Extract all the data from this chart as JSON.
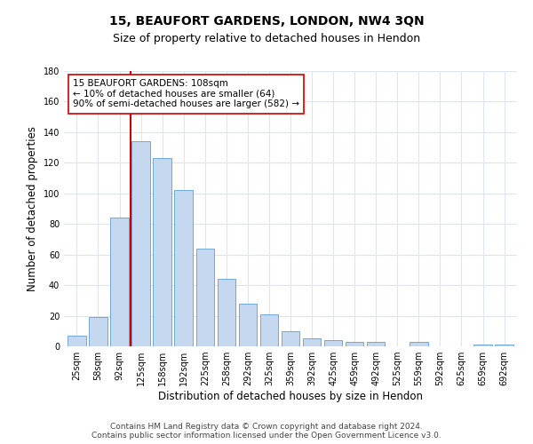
{
  "title": "15, BEAUFORT GARDENS, LONDON, NW4 3QN",
  "subtitle": "Size of property relative to detached houses in Hendon",
  "xlabel": "Distribution of detached houses by size in Hendon",
  "ylabel": "Number of detached properties",
  "categories": [
    "25sqm",
    "58sqm",
    "92sqm",
    "125sqm",
    "158sqm",
    "192sqm",
    "225sqm",
    "258sqm",
    "292sqm",
    "325sqm",
    "359sqm",
    "392sqm",
    "425sqm",
    "459sqm",
    "492sqm",
    "525sqm",
    "559sqm",
    "592sqm",
    "625sqm",
    "659sqm",
    "692sqm"
  ],
  "values": [
    7,
    19,
    84,
    134,
    123,
    102,
    64,
    44,
    28,
    21,
    10,
    5,
    4,
    3,
    3,
    0,
    3,
    0,
    0,
    1,
    1
  ],
  "bar_color": "#c5d8f0",
  "bar_edge_color": "#5a9fd4",
  "ylim": [
    0,
    180
  ],
  "yticks": [
    0,
    20,
    40,
    60,
    80,
    100,
    120,
    140,
    160,
    180
  ],
  "vline_color": "#cc0000",
  "annotation_text": "15 BEAUFORT GARDENS: 108sqm\n← 10% of detached houses are smaller (64)\n90% of semi-detached houses are larger (582) →",
  "annotation_box_color": "#ffffff",
  "annotation_box_edgecolor": "#cc0000",
  "footer_line1": "Contains HM Land Registry data © Crown copyright and database right 2024.",
  "footer_line2": "Contains public sector information licensed under the Open Government Licence v3.0.",
  "bg_color": "#ffffff",
  "grid_color": "#dce6f0",
  "title_fontsize": 10,
  "subtitle_fontsize": 9,
  "axis_label_fontsize": 8.5,
  "tick_fontsize": 7,
  "footer_fontsize": 6.5,
  "annotation_fontsize": 7.5
}
